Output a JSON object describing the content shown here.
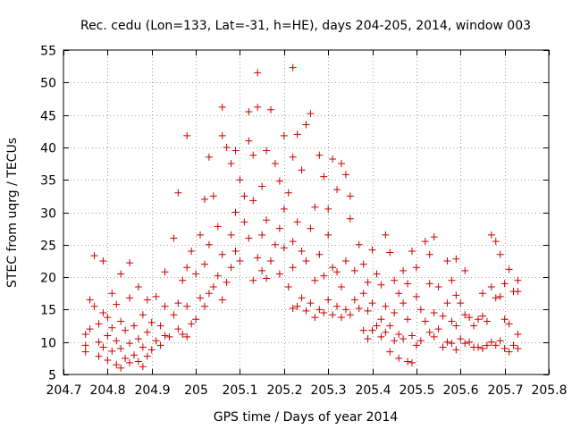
{
  "chart_data": {
    "type": "scatter",
    "title": "Rec. cedu (Lon=133, Lat=-31, h=HE), days 204-205, 2014, window 003",
    "xlabel": "GPS time / Days of year 2014",
    "ylabel": "STEC from uqrg / TECUs",
    "xlim": [
      204.7,
      205.8
    ],
    "ylim": [
      5,
      55
    ],
    "xticks": [
      204.7,
      204.8,
      204.9,
      205.0,
      205.1,
      205.2,
      205.3,
      205.4,
      205.5,
      205.6,
      205.7,
      205.8
    ],
    "xtick_labels": [
      "204.7",
      "204.8",
      "204.9",
      "205",
      "205.1",
      "205.2",
      "205.3",
      "205.4",
      "205.5",
      "205.6",
      "205.7",
      "205.8"
    ],
    "yticks": [
      5,
      10,
      15,
      20,
      25,
      30,
      35,
      40,
      45,
      50,
      55
    ],
    "ytick_labels": [
      "5",
      "10",
      "15",
      "20",
      "25",
      "30",
      "35",
      "40",
      "45",
      "50",
      "55"
    ],
    "grid": true,
    "marker": "+",
    "color": "#cc0000",
    "points": [
      [
        204.75,
        8.5
      ],
      [
        204.75,
        9.5
      ],
      [
        204.75,
        11.2
      ],
      [
        204.76,
        12
      ],
      [
        204.76,
        16.5
      ],
      [
        204.77,
        15.5
      ],
      [
        204.77,
        23.3
      ],
      [
        204.78,
        7.8
      ],
      [
        204.78,
        10
      ],
      [
        204.78,
        12.8
      ],
      [
        204.79,
        9.2
      ],
      [
        204.79,
        14.5
      ],
      [
        204.79,
        22.5
      ],
      [
        204.8,
        7.2
      ],
      [
        204.8,
        11
      ],
      [
        204.8,
        13.8
      ],
      [
        204.81,
        8.6
      ],
      [
        204.81,
        12.2
      ],
      [
        204.81,
        17.5
      ],
      [
        204.82,
        6.5
      ],
      [
        204.82,
        10.2
      ],
      [
        204.82,
        15.8
      ],
      [
        204.83,
        6
      ],
      [
        204.83,
        9
      ],
      [
        204.83,
        13.2
      ],
      [
        204.83,
        20.5
      ],
      [
        204.84,
        7.5
      ],
      [
        204.84,
        11.8
      ],
      [
        204.85,
        6.8
      ],
      [
        204.85,
        9.8
      ],
      [
        204.85,
        16.8
      ],
      [
        204.85,
        22.2
      ],
      [
        204.86,
        8
      ],
      [
        204.86,
        12.5
      ],
      [
        204.87,
        7
      ],
      [
        204.87,
        10.5
      ],
      [
        204.87,
        18.5
      ],
      [
        204.88,
        6.2
      ],
      [
        204.88,
        9.2
      ],
      [
        204.88,
        14.2
      ],
      [
        204.89,
        7.8
      ],
      [
        204.89,
        11.5
      ],
      [
        204.89,
        16.5
      ],
      [
        204.9,
        8.8
      ],
      [
        204.9,
        13
      ],
      [
        204.91,
        10.2
      ],
      [
        204.91,
        17
      ],
      [
        204.92,
        9.5
      ],
      [
        204.92,
        12.5
      ],
      [
        204.93,
        11
      ],
      [
        204.93,
        15.5
      ],
      [
        204.93,
        20.8
      ],
      [
        204.94,
        10.8
      ],
      [
        204.95,
        14.2
      ],
      [
        204.95,
        26
      ],
      [
        204.96,
        12
      ],
      [
        204.96,
        16
      ],
      [
        204.96,
        33
      ],
      [
        204.97,
        11.2
      ],
      [
        204.97,
        19.5
      ],
      [
        204.98,
        10.8
      ],
      [
        204.98,
        15.5
      ],
      [
        204.98,
        21.5
      ],
      [
        204.98,
        41.8
      ],
      [
        204.99,
        12.8
      ],
      [
        204.99,
        24
      ],
      [
        205.0,
        13.5
      ],
      [
        205.0,
        20.5
      ],
      [
        205.01,
        16.8
      ],
      [
        205.01,
        26.5
      ],
      [
        205.02,
        15.5
      ],
      [
        205.02,
        22
      ],
      [
        205.02,
        32
      ],
      [
        205.03,
        17.5
      ],
      [
        205.03,
        25
      ],
      [
        205.03,
        38.5
      ],
      [
        205.04,
        18.5
      ],
      [
        205.04,
        32.5
      ],
      [
        205.05,
        20.2
      ],
      [
        205.05,
        27.8
      ],
      [
        205.06,
        16.5
      ],
      [
        205.06,
        23.5
      ],
      [
        205.06,
        46.2
      ],
      [
        205.06,
        41.8
      ],
      [
        205.07,
        19.2
      ],
      [
        205.07,
        40
      ],
      [
        205.08,
        21.5
      ],
      [
        205.08,
        26.5
      ],
      [
        205.08,
        37.5
      ],
      [
        205.09,
        24
      ],
      [
        205.09,
        30
      ],
      [
        205.09,
        39.5
      ],
      [
        205.1,
        22.5
      ],
      [
        205.1,
        35
      ],
      [
        205.11,
        28.5
      ],
      [
        205.11,
        32.5
      ],
      [
        205.12,
        26
      ],
      [
        205.12,
        41
      ],
      [
        205.12,
        45.5
      ],
      [
        205.13,
        19.5
      ],
      [
        205.13,
        31.8
      ],
      [
        205.13,
        38.8
      ],
      [
        205.14,
        23
      ],
      [
        205.14,
        46.2
      ],
      [
        205.14,
        51.5
      ],
      [
        205.15,
        21
      ],
      [
        205.15,
        26.5
      ],
      [
        205.15,
        34
      ],
      [
        205.16,
        19.8
      ],
      [
        205.16,
        28.8
      ],
      [
        205.16,
        39.5
      ],
      [
        205.17,
        22.5
      ],
      [
        205.17,
        45.8
      ],
      [
        205.18,
        25
      ],
      [
        205.18,
        37.5
      ],
      [
        205.19,
        20.5
      ],
      [
        205.19,
        27.5
      ],
      [
        205.19,
        34.8
      ],
      [
        205.2,
        24.5
      ],
      [
        205.2,
        30.5
      ],
      [
        205.2,
        41.8
      ],
      [
        205.21,
        18.5
      ],
      [
        205.21,
        33
      ],
      [
        205.22,
        15.2
      ],
      [
        205.22,
        21.5
      ],
      [
        205.22,
        25.5
      ],
      [
        205.22,
        38.5
      ],
      [
        205.22,
        52.3
      ],
      [
        205.23,
        15.5
      ],
      [
        205.23,
        28.5
      ],
      [
        205.23,
        42
      ],
      [
        205.24,
        16.8
      ],
      [
        205.24,
        24
      ],
      [
        205.24,
        36.5
      ],
      [
        205.25,
        14.8
      ],
      [
        205.25,
        22.5
      ],
      [
        205.25,
        43.5
      ],
      [
        205.26,
        16
      ],
      [
        205.26,
        27.5
      ],
      [
        205.26,
        45.2
      ],
      [
        205.27,
        13.8
      ],
      [
        205.27,
        19.5
      ],
      [
        205.27,
        30.8
      ],
      [
        205.28,
        15
      ],
      [
        205.28,
        23.5
      ],
      [
        205.28,
        38.8
      ],
      [
        205.29,
        14.5
      ],
      [
        205.29,
        20.2
      ],
      [
        205.29,
        35.5
      ],
      [
        205.3,
        16.5
      ],
      [
        205.3,
        26.5
      ],
      [
        205.3,
        30.5
      ],
      [
        205.31,
        14.2
      ],
      [
        205.31,
        21.5
      ],
      [
        205.31,
        38.2
      ],
      [
        205.32,
        15.5
      ],
      [
        205.32,
        20.8
      ],
      [
        205.32,
        33.5
      ],
      [
        205.33,
        13.8
      ],
      [
        205.33,
        18.5
      ],
      [
        205.33,
        37.5
      ],
      [
        205.34,
        15
      ],
      [
        205.34,
        22.5
      ],
      [
        205.34,
        35.8
      ],
      [
        205.35,
        14.2
      ],
      [
        205.35,
        29
      ],
      [
        205.35,
        32.5
      ],
      [
        205.36,
        16.5
      ],
      [
        205.36,
        21
      ],
      [
        205.37,
        15.2
      ],
      [
        205.37,
        25
      ],
      [
        205.38,
        11.8
      ],
      [
        205.38,
        17.5
      ],
      [
        205.38,
        22
      ],
      [
        205.39,
        10.5
      ],
      [
        205.39,
        14.8
      ],
      [
        205.39,
        19.2
      ],
      [
        205.4,
        11.8
      ],
      [
        205.4,
        16
      ],
      [
        205.4,
        24.2
      ],
      [
        205.41,
        12.5
      ],
      [
        205.41,
        20.5
      ],
      [
        205.42,
        10.8
      ],
      [
        205.42,
        13.5
      ],
      [
        205.42,
        18.8
      ],
      [
        205.43,
        11.5
      ],
      [
        205.43,
        15.5
      ],
      [
        205.43,
        26.5
      ],
      [
        205.44,
        8.5
      ],
      [
        205.44,
        12.5
      ],
      [
        205.44,
        23.8
      ],
      [
        205.45,
        10.2
      ],
      [
        205.45,
        14.5
      ],
      [
        205.45,
        19.5
      ],
      [
        205.46,
        7.5
      ],
      [
        205.46,
        11.2
      ],
      [
        205.46,
        17.5
      ],
      [
        205.47,
        10.5
      ],
      [
        205.47,
        16
      ],
      [
        205.47,
        21
      ],
      [
        205.48,
        7
      ],
      [
        205.48,
        13.5
      ],
      [
        205.48,
        19
      ],
      [
        205.49,
        6.8
      ],
      [
        205.49,
        11
      ],
      [
        205.49,
        24
      ],
      [
        205.5,
        9.5
      ],
      [
        205.5,
        17
      ],
      [
        205.5,
        21.5
      ],
      [
        205.51,
        10.2
      ],
      [
        205.51,
        15
      ],
      [
        205.52,
        13.2
      ],
      [
        205.52,
        25.5
      ],
      [
        205.53,
        11.5
      ],
      [
        205.53,
        19
      ],
      [
        205.53,
        23.5
      ],
      [
        205.54,
        10.8
      ],
      [
        205.54,
        14.5
      ],
      [
        205.54,
        26.2
      ],
      [
        205.55,
        12
      ],
      [
        205.55,
        18.5
      ],
      [
        205.56,
        9.2
      ],
      [
        205.56,
        14
      ],
      [
        205.57,
        10
      ],
      [
        205.57,
        16
      ],
      [
        205.57,
        22.5
      ],
      [
        205.58,
        9.8
      ],
      [
        205.58,
        13.2
      ],
      [
        205.58,
        19.5
      ],
      [
        205.59,
        8.8
      ],
      [
        205.59,
        12.5
      ],
      [
        205.59,
        17.2
      ],
      [
        205.59,
        22.8
      ],
      [
        205.6,
        10.5
      ],
      [
        205.6,
        16
      ],
      [
        205.61,
        9.8
      ],
      [
        205.61,
        14.2
      ],
      [
        205.61,
        21
      ],
      [
        205.62,
        10
      ],
      [
        205.62,
        13.8
      ],
      [
        205.63,
        9.2
      ],
      [
        205.63,
        12.5
      ],
      [
        205.64,
        9.2
      ],
      [
        205.64,
        13.5
      ],
      [
        205.65,
        9
      ],
      [
        205.65,
        14
      ],
      [
        205.65,
        17.5
      ],
      [
        205.66,
        9.5
      ],
      [
        205.66,
        13.2
      ],
      [
        205.67,
        10
      ],
      [
        205.67,
        18.5
      ],
      [
        205.67,
        26.5
      ],
      [
        205.68,
        9.5
      ],
      [
        205.68,
        16.8
      ],
      [
        205.68,
        25.5
      ],
      [
        205.69,
        10.2
      ],
      [
        205.69,
        17
      ],
      [
        205.69,
        23.5
      ],
      [
        205.7,
        9
      ],
      [
        205.7,
        13.5
      ],
      [
        205.7,
        19
      ],
      [
        205.71,
        8.5
      ],
      [
        205.71,
        12.8
      ],
      [
        205.71,
        21.2
      ],
      [
        205.72,
        9.5
      ],
      [
        205.72,
        17.8
      ],
      [
        205.73,
        9
      ],
      [
        205.73,
        11.2
      ],
      [
        205.73,
        17.8
      ],
      [
        205.73,
        19.5
      ]
    ]
  }
}
